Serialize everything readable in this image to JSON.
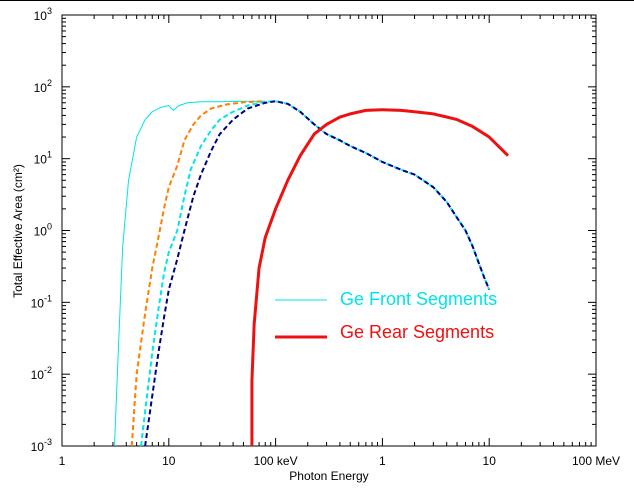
{
  "chart_data": {
    "type": "line",
    "title": "",
    "xlabel": "Photon Energy",
    "ylabel": "Total Effective Area (cm²)",
    "x_scale": "log",
    "y_scale": "log",
    "x_unit": "keV",
    "xlim": [
      1,
      100000
    ],
    "ylim": [
      0.001,
      1000
    ],
    "grid": false,
    "x_tick_labels": [
      "1",
      "10",
      "100 keV",
      "1",
      "10",
      "100 MeV"
    ],
    "y_tick_labels": [
      {
        "base": "10",
        "exp": "-3"
      },
      {
        "base": "10",
        "exp": "-2"
      },
      {
        "base": "10",
        "exp": "-1"
      },
      {
        "base": "10",
        "exp": "0"
      },
      {
        "base": "10",
        "exp": "1"
      },
      {
        "base": "10",
        "exp": "2"
      },
      {
        "base": "10",
        "exp": "3"
      }
    ],
    "legend_position": "center-right",
    "legend": [
      {
        "label": "Ge Front Segments",
        "color": "#00e5e5"
      },
      {
        "label": "Ge Rear Segments",
        "color": "#ee1111"
      }
    ],
    "series": [
      {
        "color": "#00e5e5",
        "style": "solid",
        "width": 1,
        "points": [
          [
            3.1,
            0.001
          ],
          [
            3.4,
            0.03
          ],
          [
            3.7,
            0.6
          ],
          [
            4.2,
            5
          ],
          [
            5,
            20
          ],
          [
            6,
            35
          ],
          [
            7,
            45
          ],
          [
            8.5,
            52
          ],
          [
            10,
            55
          ],
          [
            11,
            47
          ],
          [
            12.5,
            55
          ],
          [
            15,
            60
          ],
          [
            20,
            62
          ],
          [
            30,
            62
          ],
          [
            50,
            63
          ],
          [
            80,
            63
          ]
        ]
      },
      {
        "color": "#ff7f00",
        "style": "dashed",
        "width": 2,
        "points": [
          [
            4.5,
            0.001
          ],
          [
            5,
            0.01
          ],
          [
            6,
            0.07
          ],
          [
            7,
            0.3
          ],
          [
            8,
            0.8
          ],
          [
            9,
            2
          ],
          [
            10,
            4
          ],
          [
            12,
            8
          ],
          [
            14,
            18
          ],
          [
            17,
            30
          ],
          [
            20,
            40
          ],
          [
            25,
            50
          ],
          [
            35,
            57
          ],
          [
            50,
            61
          ],
          [
            80,
            63
          ]
        ]
      },
      {
        "color": "#00e5e5",
        "style": "dashed",
        "width": 2,
        "points": [
          [
            5.5,
            0.001
          ],
          [
            6,
            0.003
          ],
          [
            7,
            0.02
          ],
          [
            8,
            0.08
          ],
          [
            9,
            0.25
          ],
          [
            10,
            0.5
          ],
          [
            12,
            1
          ],
          [
            14,
            3
          ],
          [
            16,
            7
          ],
          [
            20,
            15
          ],
          [
            25,
            25
          ],
          [
            30,
            35
          ],
          [
            40,
            45
          ],
          [
            55,
            55
          ],
          [
            80,
            62
          ],
          [
            100,
            63
          ],
          [
            130,
            58
          ],
          [
            170,
            45
          ],
          [
            230,
            30
          ],
          [
            300,
            22
          ],
          [
            400,
            18
          ],
          [
            500,
            15
          ],
          [
            700,
            12
          ],
          [
            1000,
            9
          ],
          [
            1500,
            7
          ],
          [
            2000,
            6
          ],
          [
            3000,
            4
          ],
          [
            4000,
            2.5
          ],
          [
            5000,
            1.5
          ],
          [
            6000,
            1
          ],
          [
            7000,
            0.6
          ],
          [
            8000,
            0.35
          ],
          [
            9000,
            0.22
          ],
          [
            10000,
            0.15
          ]
        ]
      },
      {
        "color": "#000080",
        "style": "dashed",
        "width": 2,
        "points": [
          [
            6,
            0.001
          ],
          [
            7,
            0.005
          ],
          [
            8,
            0.02
          ],
          [
            9,
            0.06
          ],
          [
            10,
            0.15
          ],
          [
            12,
            0.4
          ],
          [
            14,
            1
          ],
          [
            17,
            3
          ],
          [
            20,
            6
          ],
          [
            25,
            13
          ],
          [
            30,
            22
          ],
          [
            40,
            35
          ],
          [
            55,
            50
          ],
          [
            80,
            60
          ],
          [
            100,
            63
          ],
          [
            130,
            58
          ],
          [
            170,
            45
          ],
          [
            230,
            30
          ],
          [
            300,
            22
          ],
          [
            400,
            18
          ],
          [
            500,
            15
          ],
          [
            700,
            12
          ],
          [
            1000,
            9
          ],
          [
            1500,
            7
          ],
          [
            2000,
            6
          ],
          [
            3000,
            4
          ],
          [
            4000,
            2.5
          ],
          [
            5000,
            1.5
          ],
          [
            6000,
            1
          ],
          [
            7000,
            0.6
          ],
          [
            8000,
            0.35
          ],
          [
            9000,
            0.22
          ],
          [
            10000,
            0.15
          ]
        ]
      },
      {
        "color": "#ee1111",
        "style": "solid",
        "width": 3,
        "points": [
          [
            60,
            0.001
          ],
          [
            60,
            0.008
          ],
          [
            63,
            0.05
          ],
          [
            70,
            0.3
          ],
          [
            80,
            0.8
          ],
          [
            100,
            2
          ],
          [
            130,
            5
          ],
          [
            170,
            11
          ],
          [
            230,
            22
          ],
          [
            300,
            30
          ],
          [
            400,
            38
          ],
          [
            500,
            42
          ],
          [
            700,
            47
          ],
          [
            1000,
            48
          ],
          [
            1500,
            47
          ],
          [
            2000,
            45
          ],
          [
            3000,
            42
          ],
          [
            4000,
            38
          ],
          [
            5000,
            35
          ],
          [
            7000,
            28
          ],
          [
            10000,
            20
          ],
          [
            15000,
            11
          ]
        ]
      }
    ]
  }
}
